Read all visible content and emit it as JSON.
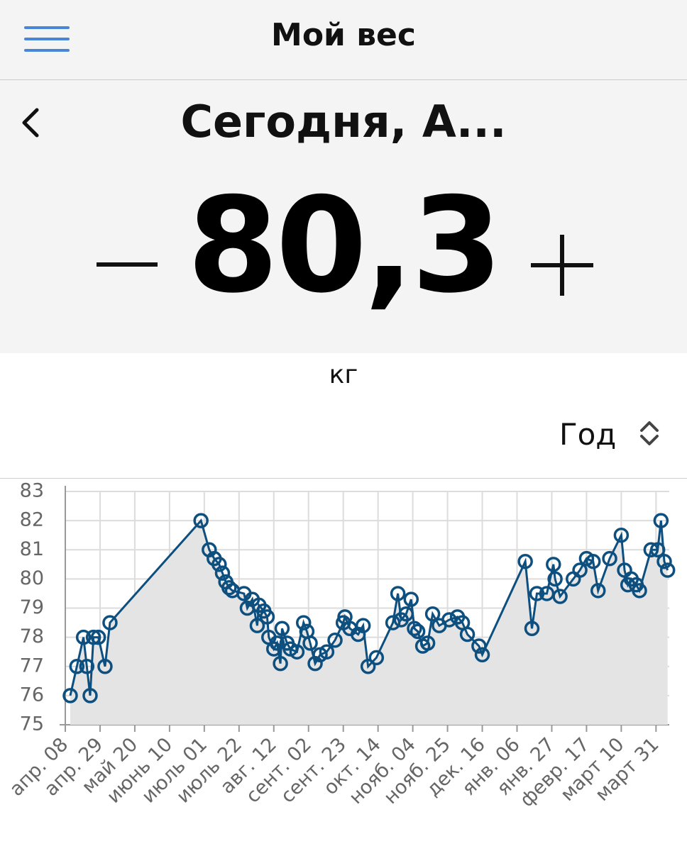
{
  "header": {
    "title": "Мой вес"
  },
  "day": {
    "label": "Сегодня, А...",
    "weight": "80,3",
    "unit": "кг"
  },
  "period": "Год",
  "chart_data": {
    "type": "line",
    "x": [
      3,
      7,
      11,
      13,
      15,
      17,
      20,
      24,
      27,
      82,
      87,
      90,
      93,
      95,
      97,
      99,
      101,
      108,
      110,
      113,
      116,
      117,
      120,
      122,
      123,
      126,
      128,
      130,
      131,
      134,
      136,
      140,
      144,
      146,
      148,
      151,
      154,
      158,
      163,
      168,
      169,
      172,
      177,
      180,
      183,
      188,
      198,
      201,
      203,
      206,
      209,
      211,
      213,
      216,
      219,
      222,
      226,
      232,
      237,
      240,
      243,
      250,
      252,
      278,
      282,
      285,
      291,
      295,
      296,
      299,
      307,
      311,
      315,
      319,
      322,
      329,
      336,
      338,
      340,
      342,
      345,
      347,
      354,
      358,
      360,
      362,
      364
    ],
    "series": [
      {
        "color": "#0d4f7f",
        "values": [
          76,
          77,
          78,
          77,
          76,
          78,
          78,
          77,
          78.5,
          82,
          81,
          80.7,
          80.5,
          80.2,
          79.9,
          79.7,
          79.6,
          79.5,
          79,
          79.3,
          78.4,
          79.1,
          78.9,
          78.7,
          78,
          77.6,
          77.8,
          77.1,
          78.3,
          77.8,
          77.6,
          77.5,
          78.5,
          78.2,
          77.8,
          77.1,
          77.4,
          77.5,
          77.9,
          78.5,
          78.7,
          78.3,
          78.1,
          78.4,
          77,
          77.3,
          78.5,
          79.5,
          78.6,
          78.8,
          79.3,
          78.3,
          78.2,
          77.7,
          77.8,
          78.8,
          78.4,
          78.6,
          78.7,
          78.5,
          78.1,
          77.7,
          77.4,
          80.6,
          78.3,
          79.5,
          79.5,
          80.5,
          80,
          79.4,
          80,
          80.3,
          80.7,
          80.6,
          79.6,
          80.7,
          81.5,
          80.3,
          79.8,
          80,
          79.8,
          79.6,
          81,
          81,
          82,
          80.6,
          80.3
        ]
      }
    ],
    "xlim": [
      0,
      365
    ],
    "xticks": [
      {
        "value": 0,
        "label": "апр. 08"
      },
      {
        "value": 21,
        "label": "апр. 29"
      },
      {
        "value": 42,
        "label": "май 20"
      },
      {
        "value": 63,
        "label": "июнь 10"
      },
      {
        "value": 84,
        "label": "июль 01"
      },
      {
        "value": 105,
        "label": "июль 22"
      },
      {
        "value": 126,
        "label": "авг. 12"
      },
      {
        "value": 147,
        "label": "сент. 02"
      },
      {
        "value": 168,
        "label": "сент. 23"
      },
      {
        "value": 189,
        "label": "окт. 14"
      },
      {
        "value": 210,
        "label": "нояб. 04"
      },
      {
        "value": 231,
        "label": "нояб. 25"
      },
      {
        "value": 252,
        "label": "дек. 16"
      },
      {
        "value": 273,
        "label": "янв. 06"
      },
      {
        "value": 294,
        "label": "янв. 27"
      },
      {
        "value": 315,
        "label": "февр. 17"
      },
      {
        "value": 336,
        "label": "март 10"
      },
      {
        "value": 357,
        "label": "март 31"
      }
    ],
    "ylim": [
      75,
      83
    ],
    "yticks": [
      75,
      76,
      77,
      78,
      79,
      80,
      81,
      82,
      83
    ],
    "grid": true,
    "fill": "#e4e4e4"
  }
}
